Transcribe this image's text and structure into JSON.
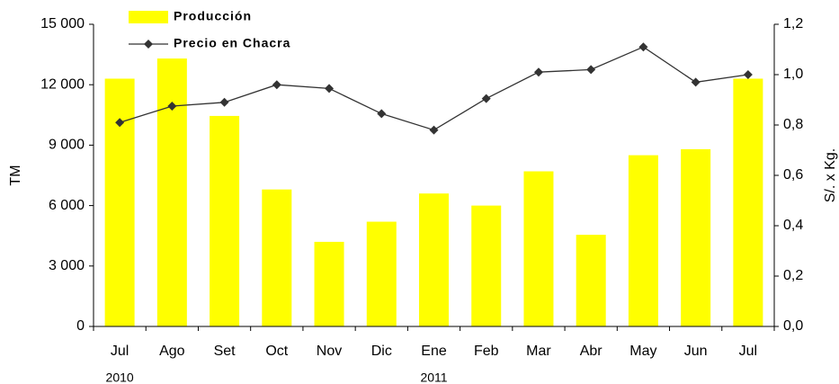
{
  "chart_data": {
    "type": "bar",
    "categories": [
      "Jul",
      "Ago",
      "Set",
      "Oct",
      "Nov",
      "Dic",
      "Ene",
      "Feb",
      "Mar",
      "Abr",
      "May",
      "Jun",
      "Jul"
    ],
    "x_group_labels": [
      "2010",
      null,
      null,
      null,
      null,
      null,
      "2011",
      null,
      null,
      null,
      null,
      null,
      null
    ],
    "series": [
      {
        "name": "Producción",
        "type": "bar",
        "axis": "y",
        "color": "#ffff00",
        "values": [
          12300,
          13300,
          10450,
          6800,
          4200,
          5200,
          6600,
          6000,
          7700,
          4550,
          8500,
          8800,
          12300
        ]
      },
      {
        "name": "Precio en Chacra",
        "type": "line",
        "axis": "y2",
        "color": "#333333",
        "values": [
          0.81,
          0.875,
          0.89,
          0.96,
          0.945,
          0.845,
          0.78,
          0.905,
          1.01,
          1.02,
          1.11,
          0.97,
          1.0
        ]
      }
    ],
    "ylabel": "TM",
    "y2label": "S/. x Kg.",
    "ylim": [
      0,
      15000
    ],
    "yticks": [
      0,
      {
        "value": 3000,
        "label": "3 000"
      },
      {
        "value": 6000,
        "label": "6 000"
      },
      {
        "value": 9000,
        "label": "9 000"
      },
      {
        "value": 12000,
        "label": "12 000"
      },
      {
        "value": 15000,
        "label": "15 000"
      }
    ],
    "y2lim": [
      0,
      1.2
    ],
    "y2ticks": [
      {
        "value": 0,
        "label": "0,0"
      },
      {
        "value": 0.2,
        "label": "0,2"
      },
      {
        "value": 0.4,
        "label": "0,4"
      },
      {
        "value": 0.6,
        "label": "0,6"
      },
      {
        "value": 0.8,
        "label": "0,8"
      },
      {
        "value": 1.0,
        "label": "1,0"
      },
      {
        "value": 1.2,
        "label": "1,2"
      }
    ],
    "legend": "upper left",
    "grid": false
  }
}
